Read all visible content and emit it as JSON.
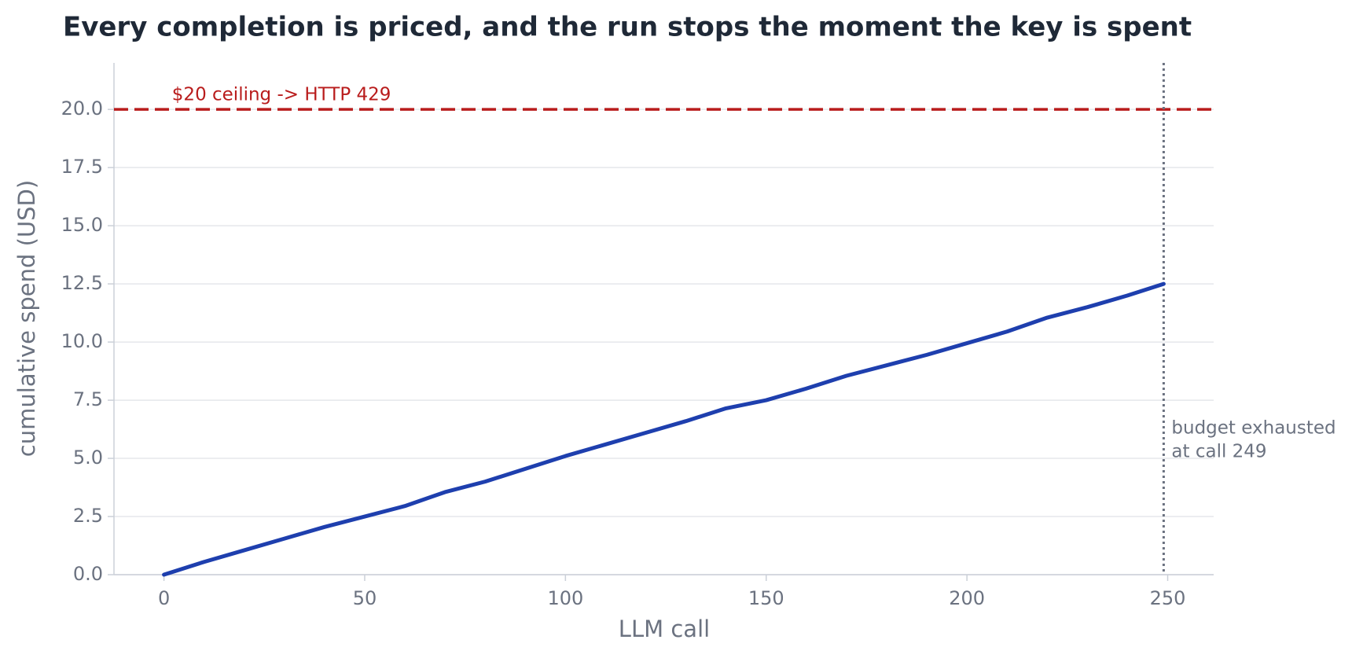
{
  "chart_data": {
    "type": "line",
    "title": "Every completion is priced, and the run stops the moment the key is spent",
    "xlabel": "LLM call",
    "ylabel": "cumulative spend (USD)",
    "x": [
      0,
      10,
      20,
      30,
      40,
      50,
      60,
      70,
      80,
      90,
      100,
      110,
      120,
      130,
      140,
      150,
      160,
      170,
      180,
      190,
      200,
      210,
      220,
      230,
      240,
      249
    ],
    "series": [
      {
        "name": "cumulative spend",
        "color": "#1e3fae",
        "values": [
          0,
          0.55,
          1.05,
          1.55,
          2.05,
          2.5,
          2.95,
          3.55,
          4.0,
          4.55,
          5.1,
          5.6,
          6.1,
          6.6,
          7.15,
          7.5,
          8.0,
          8.55,
          9.0,
          9.45,
          9.95,
          10.45,
          11.05,
          11.5,
          12.0,
          12.5
        ]
      }
    ],
    "xlim": [
      -12.45,
      261.45
    ],
    "ylim": [
      0,
      22
    ],
    "xticks": [
      0,
      50,
      100,
      150,
      200,
      250
    ],
    "yticks": [
      {
        "value": 0,
        "label": "0.0"
      },
      2.5,
      {
        "value": 5,
        "label": "5.0"
      },
      7.5,
      {
        "value": 10,
        "label": "10.0"
      },
      12.5,
      {
        "value": 15,
        "label": "15.0"
      },
      17.5,
      {
        "value": 20,
        "label": "20.0"
      }
    ],
    "grid": true,
    "ceiling": {
      "value": 20,
      "label": "$20 ceiling  ->  HTTP 429",
      "color": "#b91c1c"
    },
    "stop": {
      "value": 249,
      "label": [
        "budget exhausted",
        "at call 249"
      ],
      "color": "#6b7280"
    }
  }
}
